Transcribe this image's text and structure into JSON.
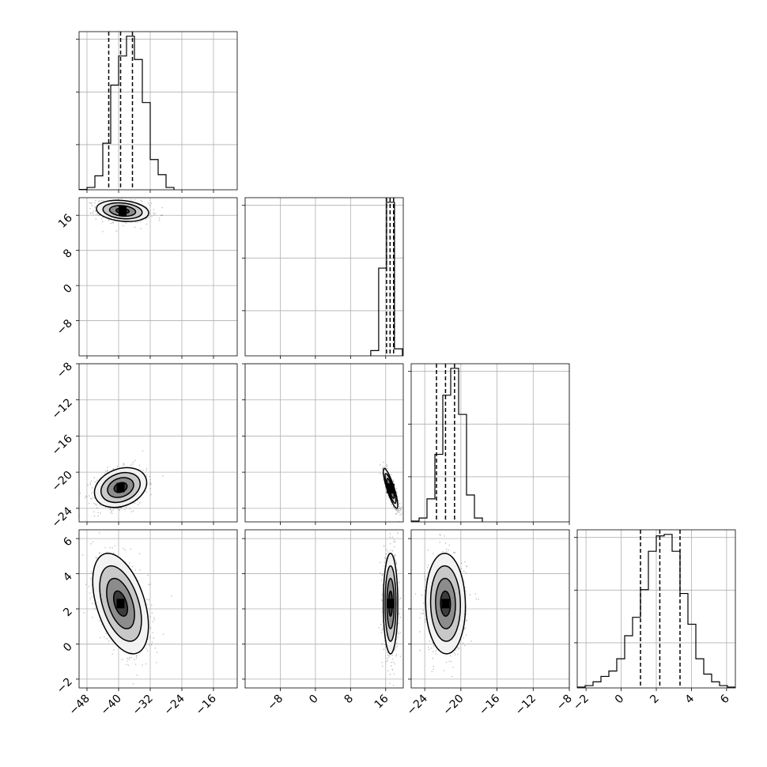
{
  "chart_data": {
    "type": "corner",
    "parameters": 4,
    "grid": true,
    "point_color": "#000000",
    "fill_colors": [
      "#f2f2f2",
      "#c8c8c8",
      "#8c8c8c",
      "#3c3c3c",
      "#000000"
    ],
    "ranges": [
      [
        -50,
        -10
      ],
      [
        -16,
        20
      ],
      [
        -25.5,
        -8
      ],
      [
        -2.5,
        6.5
      ]
    ],
    "ticks": [
      [
        -48,
        -40,
        -32,
        -24,
        -16
      ],
      [
        -8,
        0,
        8,
        16
      ],
      [
        -24,
        -20,
        -16,
        -12,
        -8
      ],
      [
        -2,
        0,
        2,
        4,
        6
      ]
    ],
    "histograms": [
      {
        "bin_width": 2,
        "bins": [
          [
            -50,
            0.3
          ],
          [
            -48,
            2
          ],
          [
            -46,
            12
          ],
          [
            -44,
            40
          ],
          [
            -42,
            90
          ],
          [
            -40,
            115
          ],
          [
            -38,
            132
          ],
          [
            -36,
            112
          ],
          [
            -34,
            75
          ],
          [
            -32,
            26
          ],
          [
            -30,
            13
          ],
          [
            -28,
            2
          ]
        ],
        "quantiles": [
          -42.5,
          -39.5,
          -36.5
        ]
      },
      {
        "bin_width": 1.8,
        "bins": [
          [
            12.6,
            6
          ],
          [
            14.4,
            100
          ],
          [
            16.2,
            175
          ],
          [
            18.0,
            8
          ]
        ],
        "quantiles": [
          16.2,
          17.0,
          17.8
        ]
      },
      {
        "bin_width": 0.875,
        "bins": [
          [
            -25.5,
            1
          ],
          [
            -24.625,
            5
          ],
          [
            -23.75,
            30
          ],
          [
            -22.875,
            88
          ],
          [
            -22.0,
            165
          ],
          [
            -21.125,
            200
          ],
          [
            -20.25,
            140
          ],
          [
            -19.375,
            35
          ],
          [
            -18.5,
            5
          ]
        ],
        "quantiles": [
          -22.7,
          -21.7,
          -20.7
        ]
      },
      {
        "bin_width": 0.45,
        "bins": [
          [
            -2.5,
            1
          ],
          [
            -2.05,
            3
          ],
          [
            -1.6,
            8
          ],
          [
            -1.15,
            15
          ],
          [
            -0.7,
            22
          ],
          [
            -0.25,
            38
          ],
          [
            0.2,
            68
          ],
          [
            0.65,
            92
          ],
          [
            1.1,
            128
          ],
          [
            1.55,
            178
          ],
          [
            2.0,
            198
          ],
          [
            2.45,
            200
          ],
          [
            2.9,
            178
          ],
          [
            3.35,
            123
          ],
          [
            3.8,
            83
          ],
          [
            4.25,
            38
          ],
          [
            4.7,
            18
          ],
          [
            5.15,
            8
          ],
          [
            5.6,
            3
          ],
          [
            6.05,
            1
          ]
        ],
        "quantiles": [
          1.1,
          2.2,
          3.35
        ]
      }
    ],
    "pairs": [
      {
        "row": 1,
        "col": 0,
        "mean": [
          -39,
          17
        ],
        "sd": [
          3,
          1.1
        ],
        "rho": -0.2
      },
      {
        "row": 2,
        "col": 0,
        "mean": [
          -39.5,
          -21.7
        ],
        "sd": [
          3,
          1.0
        ],
        "rho": 0.25
      },
      {
        "row": 2,
        "col": 1,
        "mean": [
          17.1,
          -21.8
        ],
        "sd": [
          0.75,
          1.0
        ],
        "rho": -0.85
      },
      {
        "row": 3,
        "col": 0,
        "mean": [
          -39.5,
          2.3
        ],
        "sd": [
          3.2,
          1.3
        ],
        "rho": -0.45
      },
      {
        "row": 3,
        "col": 1,
        "mean": [
          17.1,
          2.3
        ],
        "sd": [
          0.75,
          1.3
        ],
        "rho": 0.0
      },
      {
        "row": 3,
        "col": 2,
        "mean": [
          -21.7,
          2.3
        ],
        "sd": [
          1.0,
          1.3
        ],
        "rho": -0.05
      }
    ]
  }
}
